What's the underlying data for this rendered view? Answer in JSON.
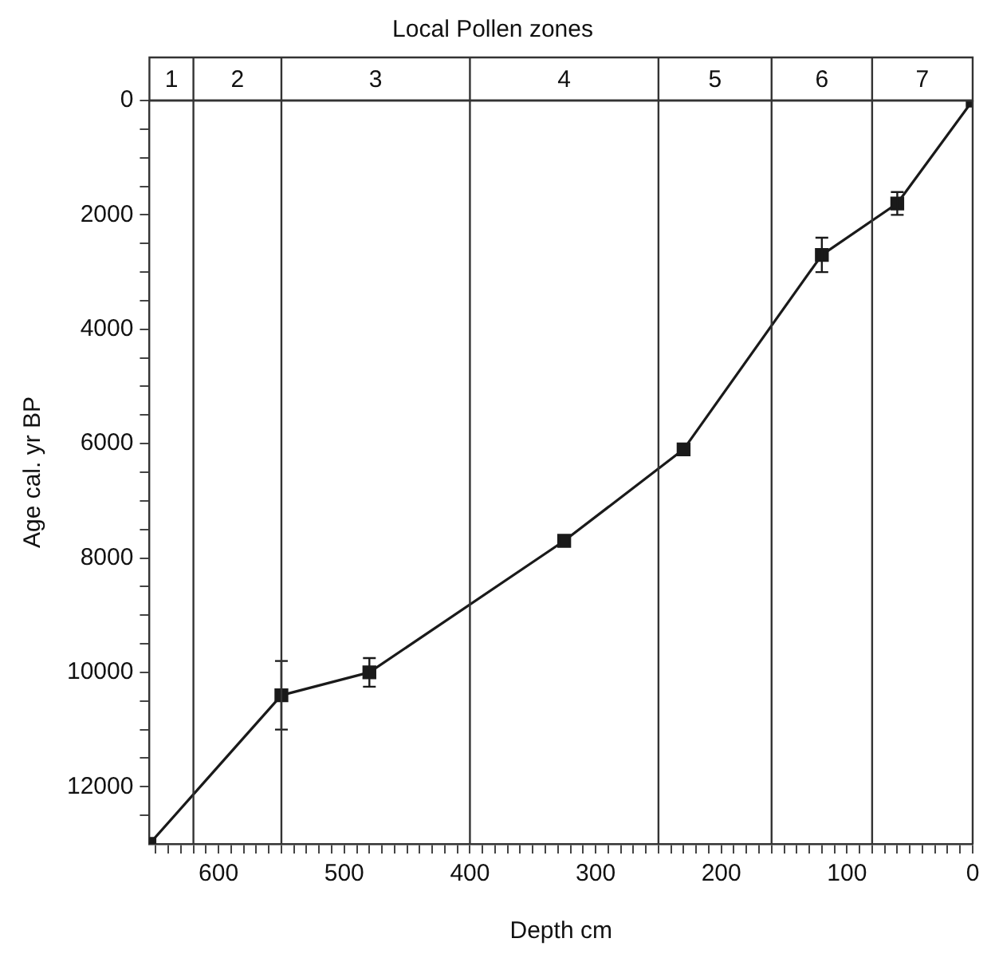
{
  "chart_data": {
    "type": "line",
    "title": "Local Pollen zones",
    "xlabel": "Depth cm",
    "ylabel": "Age cal. yr BP",
    "x": [
      655,
      550,
      480,
      325,
      230,
      120,
      60,
      0
    ],
    "values": [
      13000,
      10400,
      10000,
      7700,
      6100,
      2700,
      1800,
      0
    ],
    "errors": [
      null,
      600,
      250,
      null,
      null,
      300,
      200,
      null
    ],
    "color": "#1a1a1a",
    "marker": "square",
    "line_style": "solid",
    "grid": false,
    "legend": false,
    "xlim": [
      655,
      0
    ],
    "ylim": [
      13000,
      0
    ],
    "xticks": [
      {
        "value": 650,
        "label": null
      },
      {
        "value": 640,
        "label": null
      },
      {
        "value": 630,
        "label": null
      },
      {
        "value": 620,
        "label": null
      },
      {
        "value": 610,
        "label": null
      },
      600,
      {
        "value": 590,
        "label": null
      },
      {
        "value": 580,
        "label": null
      },
      {
        "value": 570,
        "label": null
      },
      {
        "value": 560,
        "label": null
      },
      {
        "value": 550,
        "label": null
      },
      {
        "value": 540,
        "label": null
      },
      {
        "value": 530,
        "label": null
      },
      {
        "value": 520,
        "label": null
      },
      {
        "value": 510,
        "label": null
      },
      500,
      {
        "value": 490,
        "label": null
      },
      {
        "value": 480,
        "label": null
      },
      {
        "value": 470,
        "label": null
      },
      {
        "value": 460,
        "label": null
      },
      {
        "value": 450,
        "label": null
      },
      {
        "value": 440,
        "label": null
      },
      {
        "value": 430,
        "label": null
      },
      {
        "value": 420,
        "label": null
      },
      {
        "value": 410,
        "label": null
      },
      400,
      {
        "value": 390,
        "label": null
      },
      {
        "value": 380,
        "label": null
      },
      {
        "value": 370,
        "label": null
      },
      {
        "value": 360,
        "label": null
      },
      {
        "value": 350,
        "label": null
      },
      {
        "value": 340,
        "label": null
      },
      {
        "value": 330,
        "label": null
      },
      {
        "value": 320,
        "label": null
      },
      {
        "value": 310,
        "label": null
      },
      300,
      {
        "value": 290,
        "label": null
      },
      {
        "value": 280,
        "label": null
      },
      {
        "value": 270,
        "label": null
      },
      {
        "value": 260,
        "label": null
      },
      {
        "value": 250,
        "label": null
      },
      {
        "value": 240,
        "label": null
      },
      {
        "value": 230,
        "label": null
      },
      {
        "value": 220,
        "label": null
      },
      {
        "value": 210,
        "label": null
      },
      200,
      {
        "value": 190,
        "label": null
      },
      {
        "value": 180,
        "label": null
      },
      {
        "value": 170,
        "label": null
      },
      {
        "value": 160,
        "label": null
      },
      {
        "value": 150,
        "label": null
      },
      {
        "value": 140,
        "label": null
      },
      {
        "value": 130,
        "label": null
      },
      {
        "value": 120,
        "label": null
      },
      {
        "value": 110,
        "label": null
      },
      100,
      {
        "value": 90,
        "label": null
      },
      {
        "value": 80,
        "label": null
      },
      {
        "value": 70,
        "label": null
      },
      {
        "value": 60,
        "label": null
      },
      {
        "value": 50,
        "label": null
      },
      {
        "value": 40,
        "label": null
      },
      {
        "value": 30,
        "label": null
      },
      {
        "value": 20,
        "label": null
      },
      {
        "value": 10,
        "label": null
      },
      0
    ],
    "yticks": [
      0,
      {
        "value": 500,
        "label": null
      },
      {
        "value": 1000,
        "label": null
      },
      {
        "value": 1500,
        "label": null
      },
      2000,
      {
        "value": 2500,
        "label": null
      },
      {
        "value": 3000,
        "label": null
      },
      {
        "value": 3500,
        "label": null
      },
      4000,
      {
        "value": 4500,
        "label": null
      },
      {
        "value": 5000,
        "label": null
      },
      {
        "value": 5500,
        "label": null
      },
      6000,
      {
        "value": 6500,
        "label": null
      },
      {
        "value": 7000,
        "label": null
      },
      {
        "value": 7500,
        "label": null
      },
      8000,
      {
        "value": 8500,
        "label": null
      },
      {
        "value": 9000,
        "label": null
      },
      {
        "value": 9500,
        "label": null
      },
      10000,
      {
        "value": 10500,
        "label": null
      },
      {
        "value": 11000,
        "label": null
      },
      {
        "value": 11500,
        "label": null
      },
      12000,
      {
        "value": 12500,
        "label": null
      }
    ],
    "ref_lines": [
      {
        "axis": "x",
        "value": 620
      },
      {
        "axis": "x",
        "value": 550
      },
      {
        "axis": "x",
        "value": 400
      },
      {
        "axis": "x",
        "value": 250
      },
      {
        "axis": "x",
        "value": 160
      },
      {
        "axis": "x",
        "value": 80
      }
    ],
    "annotations": [
      "1",
      "2",
      "3",
      "4",
      "5",
      "6",
      "7"
    ]
  }
}
